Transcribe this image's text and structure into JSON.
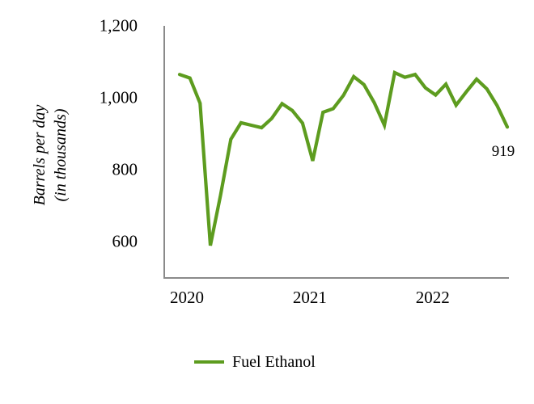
{
  "chart_data": {
    "type": "line",
    "x": [
      "Jan 2020",
      "Feb 2020",
      "Mar 2020",
      "Apr 2020",
      "May 2020",
      "Jun 2020",
      "Jul 2020",
      "Aug 2020",
      "Sep 2020",
      "Oct 2020",
      "Nov 2020",
      "Dec 2020",
      "Jan 2021",
      "Feb 2021",
      "Mar 2021",
      "Apr 2021",
      "May 2021",
      "Jun 2021",
      "Jul 2021",
      "Aug 2021",
      "Sep 2021",
      "Oct 2021",
      "Nov 2021",
      "Dec 2021",
      "Jan 2022",
      "Feb 2022",
      "Mar 2022",
      "Apr 2022",
      "May 2022",
      "Jun 2022",
      "Jul 2022",
      "Aug 2022",
      "Sep 2022"
    ],
    "series": [
      {
        "name": "Fuel Ethanol",
        "values": [
          1065,
          1055,
          985,
          590,
          730,
          885,
          931,
          924,
          917,
          943,
          984,
          965,
          930,
          825,
          960,
          970,
          1007,
          1059,
          1037,
          987,
          924,
          1070,
          1057,
          1065,
          1028,
          1008,
          1038,
          980,
          1017,
          1052,
          1025,
          979,
          919
        ]
      }
    ],
    "title": "",
    "xlabel": "",
    "ylabel": "Barrels per day (in thousands)",
    "ylim": [
      500,
      1200
    ],
    "yticks": [
      600,
      800,
      1000,
      1200
    ],
    "ytick_labels": [
      "600",
      "800",
      "1,000",
      "1,200"
    ],
    "xtick_years": [
      {
        "label": "2020",
        "month_index": 0
      },
      {
        "label": "2021",
        "month_index": 12
      },
      {
        "label": "2022",
        "month_index": 24
      }
    ],
    "grid": false,
    "legend_position": "bottom",
    "annotation": {
      "text": "919",
      "series": "Fuel Ethanol",
      "point": "last"
    }
  },
  "chart": {
    "y_axis": {
      "title_line1": "Barrels per day",
      "title_line2": "(in thousands)"
    },
    "legend": {
      "label": "Fuel Ethanol"
    },
    "annotation": {
      "text": "919"
    },
    "colors": {
      "line": "#5d9c1f",
      "axis": "#8a8a8a",
      "text": "#000000",
      "background": "#ffffff"
    }
  }
}
